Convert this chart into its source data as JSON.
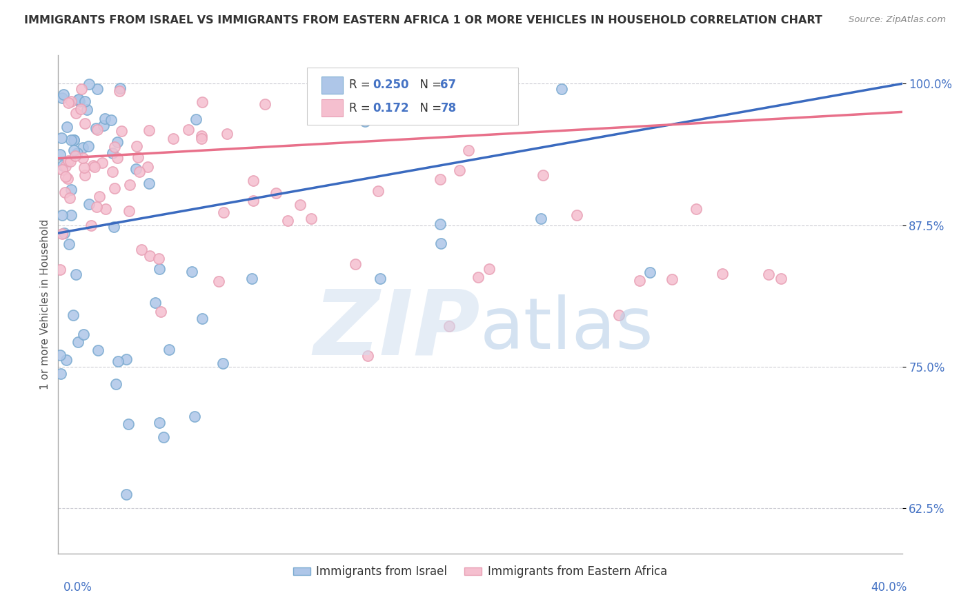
{
  "title": "IMMIGRANTS FROM ISRAEL VS IMMIGRANTS FROM EASTERN AFRICA 1 OR MORE VEHICLES IN HOUSEHOLD CORRELATION CHART",
  "source": "Source: ZipAtlas.com",
  "ylabel": "1 or more Vehicles in Household",
  "ytick_labels": [
    "100.0%",
    "87.5%",
    "75.0%",
    "62.5%"
  ],
  "ytick_values": [
    1.0,
    0.875,
    0.75,
    0.625
  ],
  "xmin": 0.0,
  "xmax": 0.4,
  "ymin": 0.585,
  "ymax": 1.025,
  "series": [
    {
      "name": "Immigrants from Israel",
      "R": 0.25,
      "N": 67,
      "color": "#aec6e8",
      "line_color": "#3a6abf",
      "marker_edge": "#7aaad0"
    },
    {
      "name": "Immigrants from Eastern Africa",
      "R": 0.172,
      "N": 78,
      "color": "#f5bfcf",
      "line_color": "#e8708a",
      "marker_edge": "#e8a0b5"
    }
  ],
  "background_color": "white",
  "grid_color": "#c8c8d0",
  "title_color": "#333333",
  "source_color": "#888888",
  "axis_label_color": "#4472c4",
  "watermark_color": "#d0dff0",
  "watermark_alpha": 0.55
}
